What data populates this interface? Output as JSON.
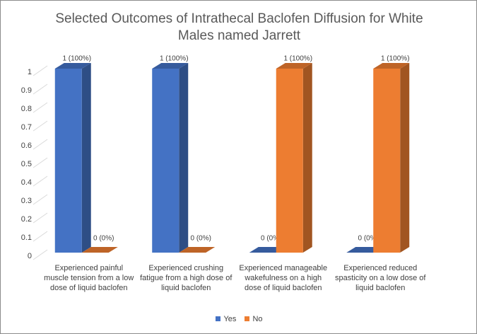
{
  "chart_data": {
    "type": "bar3d",
    "title": "Selected Outcomes of Intrathecal Baclofen Diffusion for White Males named Jarrett",
    "categories": [
      "Experienced painful muscle tension from a low dose of liquid baclofen",
      "Experienced crushing fatigue from a high dose of liquid baclofen",
      "Experienced manageable wakefulness on a high dose of liquid baclofen",
      "Experienced reduced spasticity on a low dose of liquid baclofen"
    ],
    "series": [
      {
        "name": "Yes",
        "color": "#4472c4",
        "values": [
          1,
          1,
          0,
          0
        ],
        "value_labels": [
          "1 (100%)",
          "1 (100%)",
          "0 (0%)",
          "0 (0%)"
        ]
      },
      {
        "name": "No",
        "color": "#ed7d31",
        "values": [
          0,
          0,
          1,
          1
        ],
        "value_labels": [
          "0 (0%)",
          "0 (0%)",
          "1 (100%)",
          "1 (100%)"
        ]
      }
    ],
    "ylim": [
      0,
      1
    ],
    "yticks": [
      0,
      0.1,
      0.2,
      0.3,
      0.4,
      0.5,
      0.6,
      0.7,
      0.8,
      0.9,
      1
    ],
    "grid": true,
    "legend": "bottom"
  }
}
